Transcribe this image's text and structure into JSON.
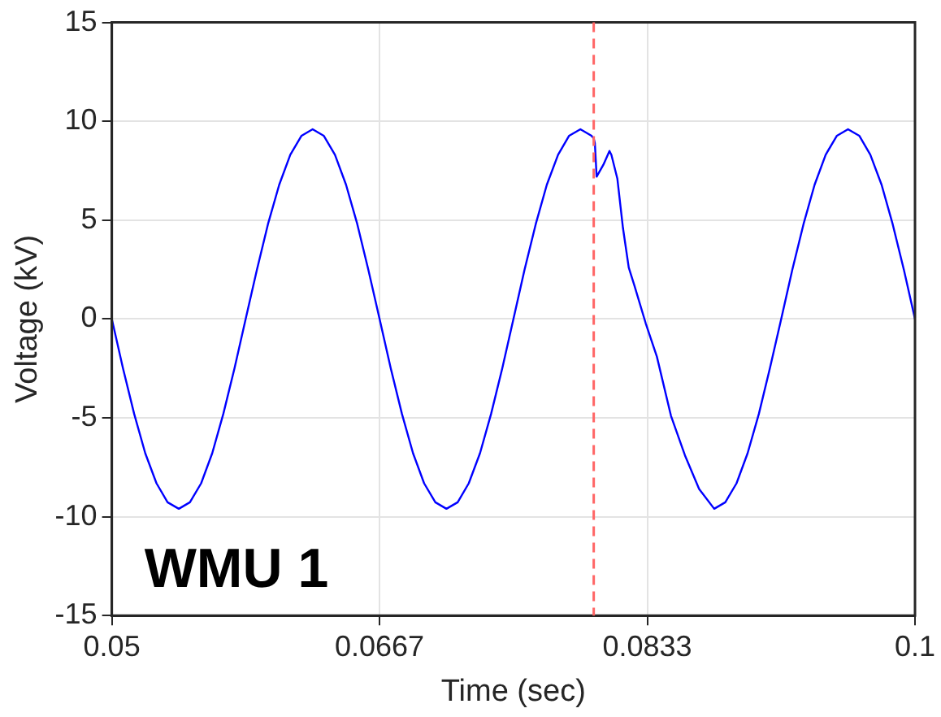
{
  "chart_data": {
    "type": "line",
    "xlabel": "Time (sec)",
    "ylabel": "Voltage (kV)",
    "xlim": [
      0.05,
      0.1
    ],
    "xticks": [
      0.05,
      {
        "value": 0.066667,
        "label": "0.0667"
      },
      {
        "value": 0.083333,
        "label": "0.0833"
      },
      0.1
    ],
    "ylim": [
      -15,
      15
    ],
    "yticks": [
      -15,
      -10,
      -5,
      0,
      5,
      10,
      15
    ],
    "grid": true,
    "legend": false,
    "marker": "none",
    "line_style": "solid",
    "annotations": [
      "WMU 1"
    ],
    "ref_lines": [
      {
        "axis": "x",
        "value": 0.08,
        "label": null,
        "color": "#ff6666",
        "line_style": "dashed"
      }
    ],
    "series": [
      {
        "color": "#0000ff",
        "x": [
          0.05,
          0.05069,
          0.05139,
          0.05208,
          0.05278,
          0.05347,
          0.05417,
          0.05486,
          0.05556,
          0.05625,
          0.05694,
          0.05764,
          0.05833,
          0.05903,
          0.05972,
          0.06042,
          0.06111,
          0.06181,
          0.0625,
          0.06319,
          0.06389,
          0.06458,
          0.06528,
          0.06597,
          0.06667,
          0.06736,
          0.06806,
          0.06875,
          0.06944,
          0.07014,
          0.07083,
          0.07153,
          0.07222,
          0.07292,
          0.07361,
          0.07431,
          0.075,
          0.07569,
          0.07639,
          0.07708,
          0.07778,
          0.07847,
          0.07917,
          0.07986,
          0.08,
          0.08007,
          0.08018,
          0.0806,
          0.08098,
          0.0811,
          0.08147,
          0.08182,
          0.08218,
          0.08253,
          0.08323,
          0.08393,
          0.08481,
          0.08568,
          0.08656,
          0.0875,
          0.08819,
          0.08889,
          0.08958,
          0.09028,
          0.09097,
          0.09167,
          0.09236,
          0.09306,
          0.09375,
          0.09444,
          0.09514,
          0.09583,
          0.09653,
          0.09722,
          0.09792,
          0.09861,
          0.09931,
          0.1
        ],
        "values": [
          0,
          -2.48,
          -4.8,
          -6.79,
          -8.31,
          -9.27,
          -9.6,
          -9.27,
          -8.31,
          -6.79,
          -4.8,
          -2.48,
          0,
          2.48,
          4.8,
          6.79,
          8.31,
          9.27,
          9.6,
          9.27,
          8.31,
          6.79,
          4.8,
          2.48,
          0,
          -2.48,
          -4.8,
          -6.79,
          -8.31,
          -9.27,
          -9.6,
          -9.27,
          -8.31,
          -6.79,
          -4.8,
          -2.48,
          0,
          2.48,
          4.8,
          6.79,
          8.31,
          9.27,
          9.6,
          9.27,
          9.13,
          8.9,
          7.2,
          7.8,
          8.5,
          8.3,
          7.1,
          4.6,
          2.6,
          1.7,
          -0.2,
          -1.9,
          -4.9,
          -6.9,
          -8.6,
          -9.6,
          -9.27,
          -8.31,
          -6.79,
          -4.8,
          -2.48,
          0,
          2.48,
          4.8,
          6.79,
          8.31,
          9.27,
          9.6,
          9.27,
          8.31,
          6.79,
          4.8,
          2.48,
          0
        ]
      }
    ]
  }
}
